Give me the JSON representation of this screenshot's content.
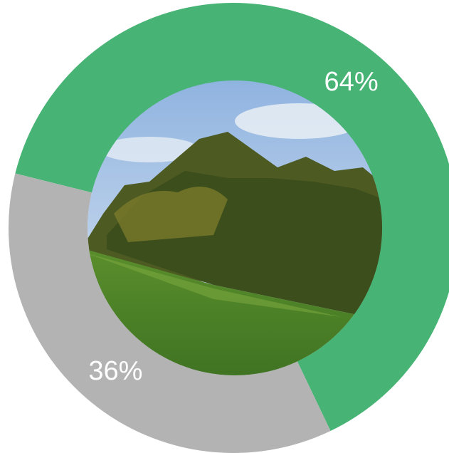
{
  "chart_data": {
    "type": "donut",
    "values": [
      64,
      36
    ],
    "value_labels": [
      "64%",
      "36%"
    ],
    "colors": [
      "#47b475",
      "#b3b3b3"
    ]
  }
}
